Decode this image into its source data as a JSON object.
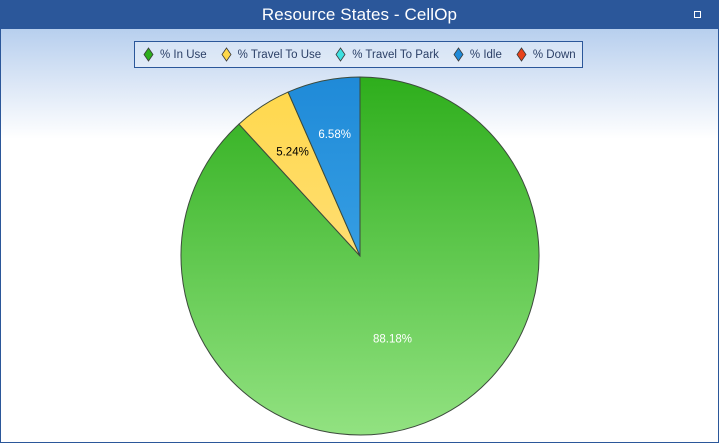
{
  "window": {
    "title": "Resource States - CellOp"
  },
  "colors": {
    "titlebar": "#2b579a",
    "legend_border": "#2b579a"
  },
  "chart_data": {
    "type": "pie",
    "title": "Resource States - CellOp",
    "legend_position": "top-center",
    "slices": [
      {
        "name": "% In Use",
        "value": 88.18,
        "label": "88.18%",
        "color_top": "#2eae1c",
        "color_bottom": "#92e281",
        "label_color": "#ffffff"
      },
      {
        "name": "% Travel To Use",
        "value": 5.24,
        "label": "5.24%",
        "color_top": "#ffd84a",
        "color_bottom": "#ffe39a",
        "label_color": "#000000"
      },
      {
        "name": "% Travel To Park",
        "value": 0,
        "label": "",
        "color_top": "#3ee0e0",
        "color_bottom": "#9ff2f2",
        "label_color": "#000000"
      },
      {
        "name": "% Idle",
        "value": 6.58,
        "label": "6.58%",
        "color_top": "#1f8ad8",
        "color_bottom": "#4cb2ee",
        "label_color": "#ffffff"
      },
      {
        "name": "% Down",
        "value": 0,
        "label": "",
        "color_top": "#e8421a",
        "color_bottom": "#f27a55",
        "label_color": "#ffffff"
      }
    ]
  }
}
